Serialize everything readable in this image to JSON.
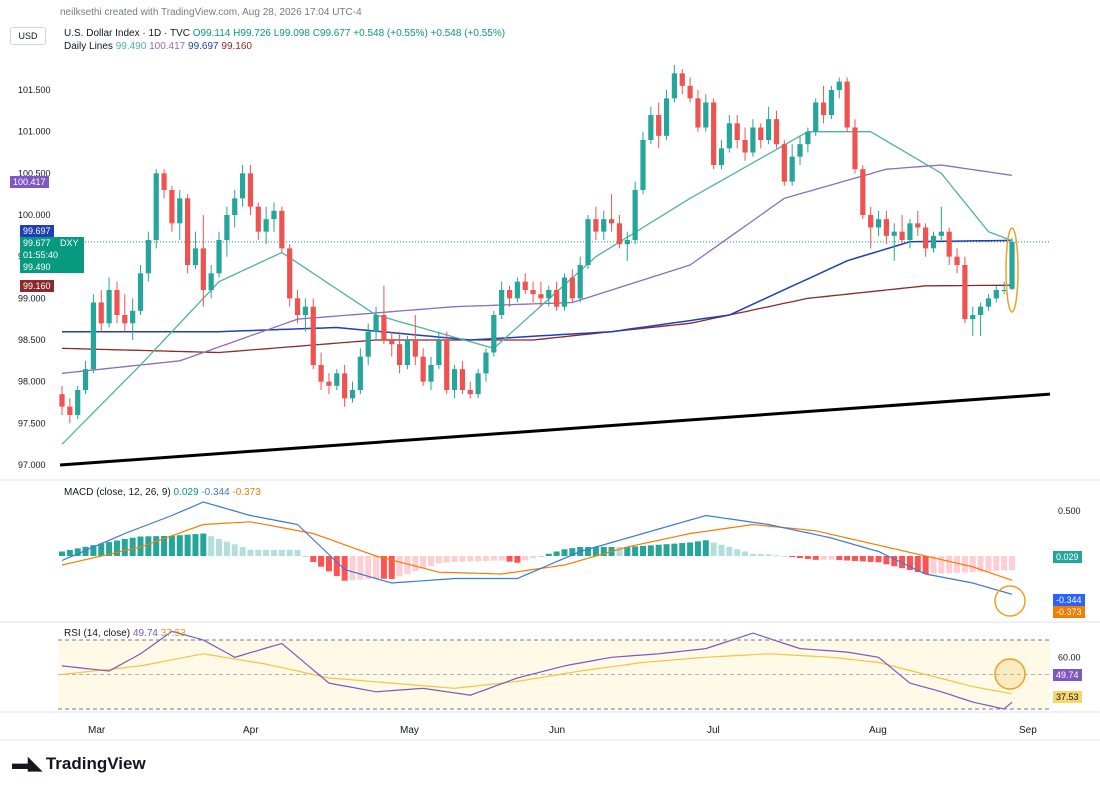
{
  "header": {
    "credit": "neilksethi created with TradingView.com, Aug 28, 2026 17:04 UTC-4",
    "currency": "USD",
    "symbol": "U.S. Dollar Index · 1D · TVC",
    "open": "O99.114",
    "high": "H99.726",
    "low": "L99.098",
    "close": "C99.677",
    "change1": "+0.548 (+0.55%)",
    "change2": "+0.548 (+0.55%)",
    "daily_lines_label": "Daily Lines",
    "daily_lines_values": [
      "99.490",
      "100.417",
      "99.697",
      "99.160"
    ]
  },
  "tags": {
    "price_a": "99.697",
    "price_b": "99.677",
    "price_b_sym": "DXY",
    "countdown": "01:55:40",
    "price_c": "99.490",
    "price_d": "99.160",
    "price_e": "100.417",
    "macd_hist": "0.029",
    "macd_line": "-0.344",
    "macd_signal": "-0.373",
    "rsi_val": "49.74",
    "rsi_ma": "37.53"
  },
  "macd_label": {
    "name": "MACD (close, 12, 26, 9)",
    "v1": "0.029",
    "v2": "-0.344",
    "v3": "-0.373"
  },
  "rsi_label": {
    "name": "RSI (14, close)",
    "v1": "49.74",
    "v2": "37.53"
  },
  "brand": "TradingView",
  "colors": {
    "up": "#26a69a",
    "down": "#ef5350",
    "ma20": "#4fb3a3",
    "ma50": "#8e6bbf",
    "ma100": "#1e3fb8",
    "ma200": "#8b2a2a",
    "macd": "#3c78d8",
    "signal": "#f57c00",
    "rsi": "#7e57c2",
    "rsi_ma": "#f5c542"
  },
  "chart_data": {
    "type": "candlestick",
    "price_axis": {
      "ticks": [
        "101.500",
        "101.000",
        "100.500",
        "100.000",
        "99.500",
        "99.000",
        "98.500",
        "98.000",
        "97.500",
        "97.000"
      ],
      "ylim": [
        97.0,
        101.85
      ]
    },
    "x_ticks": [
      "Mar",
      "Apr",
      "May",
      "Jun",
      "Jul",
      "Aug",
      "Sep"
    ],
    "candles": [
      [
        97.85,
        97.95,
        97.6,
        97.7
      ],
      [
        97.7,
        97.8,
        97.5,
        97.6
      ],
      [
        97.6,
        97.95,
        97.55,
        97.9
      ],
      [
        97.9,
        98.25,
        97.85,
        98.15
      ],
      [
        98.15,
        99.05,
        98.1,
        98.95
      ],
      [
        98.95,
        99.1,
        98.6,
        98.7
      ],
      [
        98.7,
        99.25,
        98.65,
        99.1
      ],
      [
        99.1,
        99.2,
        98.7,
        98.8
      ],
      [
        98.8,
        99.05,
        98.6,
        98.7
      ],
      [
        98.7,
        99.0,
        98.5,
        98.85
      ],
      [
        98.85,
        99.4,
        98.8,
        99.3
      ],
      [
        99.3,
        99.8,
        99.2,
        99.7
      ],
      [
        99.7,
        100.55,
        99.6,
        100.5
      ],
      [
        100.5,
        100.55,
        100.2,
        100.3
      ],
      [
        100.3,
        100.35,
        99.8,
        99.9
      ],
      [
        99.9,
        100.3,
        99.7,
        100.2
      ],
      [
        100.2,
        100.25,
        99.3,
        99.4
      ],
      [
        99.4,
        99.8,
        99.35,
        99.6
      ],
      [
        99.6,
        100.0,
        98.9,
        99.1
      ],
      [
        99.1,
        99.4,
        99.0,
        99.3
      ],
      [
        99.3,
        99.8,
        99.25,
        99.7
      ],
      [
        99.7,
        100.1,
        99.5,
        100.0
      ],
      [
        100.0,
        100.3,
        99.85,
        100.2
      ],
      [
        100.2,
        100.6,
        100.1,
        100.5
      ],
      [
        100.5,
        100.6,
        100.0,
        100.1
      ],
      [
        100.1,
        100.15,
        99.7,
        99.8
      ],
      [
        99.8,
        100.1,
        99.65,
        99.95
      ],
      [
        99.95,
        100.15,
        99.8,
        100.05
      ],
      [
        100.05,
        100.1,
        99.55,
        99.6
      ],
      [
        99.6,
        99.65,
        98.9,
        99.0
      ],
      [
        99.0,
        99.1,
        98.7,
        98.8
      ],
      [
        98.8,
        99.0,
        98.6,
        98.9
      ],
      [
        98.9,
        99.0,
        98.15,
        98.2
      ],
      [
        98.2,
        98.35,
        97.9,
        98.0
      ],
      [
        98.0,
        98.1,
        97.85,
        97.95
      ],
      [
        97.95,
        98.15,
        97.9,
        98.1
      ],
      [
        98.1,
        98.2,
        97.7,
        97.8
      ],
      [
        97.8,
        98.0,
        97.75,
        97.9
      ],
      [
        97.9,
        98.4,
        97.85,
        98.3
      ],
      [
        98.3,
        98.7,
        98.2,
        98.6
      ],
      [
        98.6,
        98.9,
        98.5,
        98.8
      ],
      [
        98.8,
        99.15,
        98.45,
        98.5
      ],
      [
        98.5,
        98.6,
        98.3,
        98.45
      ],
      [
        98.45,
        98.6,
        98.1,
        98.2
      ],
      [
        98.2,
        98.55,
        98.15,
        98.5
      ],
      [
        98.5,
        98.8,
        98.2,
        98.3
      ],
      [
        98.3,
        98.4,
        97.95,
        98.0
      ],
      [
        98.0,
        98.3,
        97.9,
        98.2
      ],
      [
        98.2,
        98.6,
        98.15,
        98.5
      ],
      [
        98.5,
        98.6,
        97.85,
        97.9
      ],
      [
        97.9,
        98.2,
        97.8,
        98.15
      ],
      [
        98.15,
        98.25,
        97.85,
        97.9
      ],
      [
        97.9,
        98.0,
        97.8,
        97.85
      ],
      [
        97.85,
        98.15,
        97.8,
        98.1
      ],
      [
        98.1,
        98.4,
        98.0,
        98.35
      ],
      [
        98.35,
        98.85,
        98.3,
        98.8
      ],
      [
        98.8,
        99.2,
        98.75,
        99.1
      ],
      [
        99.1,
        99.15,
        98.9,
        99.0
      ],
      [
        99.0,
        99.25,
        98.95,
        99.2
      ],
      [
        99.2,
        99.3,
        99.05,
        99.1
      ],
      [
        99.1,
        99.2,
        98.95,
        99.05
      ],
      [
        99.05,
        99.2,
        98.9,
        99.0
      ],
      [
        99.0,
        99.15,
        98.9,
        99.1
      ],
      [
        99.1,
        99.2,
        98.85,
        98.9
      ],
      [
        98.9,
        99.3,
        98.85,
        99.25
      ],
      [
        99.25,
        99.35,
        98.95,
        99.0
      ],
      [
        99.0,
        99.5,
        98.95,
        99.4
      ],
      [
        99.4,
        100.0,
        99.35,
        99.95
      ],
      [
        99.95,
        100.1,
        99.7,
        99.8
      ],
      [
        99.8,
        100.05,
        99.7,
        99.95
      ],
      [
        99.95,
        100.25,
        99.8,
        99.9
      ],
      [
        99.9,
        100.0,
        99.6,
        99.65
      ],
      [
        99.65,
        99.8,
        99.45,
        99.7
      ],
      [
        99.7,
        100.4,
        99.65,
        100.3
      ],
      [
        100.3,
        101.0,
        100.25,
        100.9
      ],
      [
        100.9,
        101.3,
        100.85,
        101.2
      ],
      [
        101.2,
        101.35,
        100.8,
        100.95
      ],
      [
        100.95,
        101.5,
        100.9,
        101.4
      ],
      [
        101.4,
        101.8,
        101.35,
        101.7
      ],
      [
        101.7,
        101.75,
        101.45,
        101.55
      ],
      [
        101.55,
        101.65,
        101.35,
        101.4
      ],
      [
        101.4,
        101.5,
        101.0,
        101.05
      ],
      [
        101.05,
        101.45,
        101.0,
        101.35
      ],
      [
        101.35,
        101.4,
        100.55,
        100.6
      ],
      [
        100.6,
        100.9,
        100.55,
        100.8
      ],
      [
        100.8,
        101.2,
        100.75,
        101.1
      ],
      [
        101.1,
        101.2,
        100.8,
        100.9
      ],
      [
        100.9,
        101.05,
        100.65,
        100.75
      ],
      [
        100.75,
        101.15,
        100.7,
        101.05
      ],
      [
        101.05,
        101.1,
        100.8,
        100.9
      ],
      [
        100.9,
        101.3,
        100.85,
        101.15
      ],
      [
        101.15,
        101.25,
        100.8,
        100.85
      ],
      [
        100.85,
        100.9,
        100.35,
        100.4
      ],
      [
        100.4,
        100.85,
        100.35,
        100.7
      ],
      [
        100.7,
        100.95,
        100.6,
        100.85
      ],
      [
        100.85,
        101.05,
        100.75,
        101.0
      ],
      [
        101.0,
        101.4,
        100.95,
        101.35
      ],
      [
        101.35,
        101.55,
        101.1,
        101.2
      ],
      [
        101.2,
        101.55,
        101.15,
        101.5
      ],
      [
        101.5,
        101.65,
        101.4,
        101.6
      ],
      [
        101.6,
        101.65,
        101.0,
        101.05
      ],
      [
        101.05,
        101.15,
        100.5,
        100.55
      ],
      [
        100.55,
        100.6,
        99.95,
        100.0
      ],
      [
        100.0,
        100.1,
        99.6,
        99.85
      ],
      [
        99.85,
        100.05,
        99.75,
        99.95
      ],
      [
        99.95,
        100.05,
        99.65,
        99.75
      ],
      [
        99.75,
        99.9,
        99.45,
        99.8
      ],
      [
        99.8,
        100.0,
        99.65,
        99.7
      ],
      [
        99.7,
        99.95,
        99.6,
        99.9
      ],
      [
        99.9,
        100.05,
        99.75,
        99.85
      ],
      [
        99.85,
        99.9,
        99.5,
        99.6
      ],
      [
        99.6,
        99.8,
        99.55,
        99.75
      ],
      [
        99.75,
        100.1,
        99.7,
        99.8
      ],
      [
        99.8,
        99.85,
        99.4,
        99.5
      ],
      [
        99.5,
        99.6,
        99.3,
        99.4
      ],
      [
        99.4,
        99.5,
        98.7,
        98.75
      ],
      [
        98.75,
        98.9,
        98.55,
        98.8
      ],
      [
        98.8,
        98.95,
        98.55,
        98.9
      ],
      [
        98.9,
        99.05,
        98.85,
        99.0
      ],
      [
        99.0,
        99.15,
        98.95,
        99.1
      ],
      [
        99.1,
        99.2,
        99.05,
        99.1
      ],
      [
        99.114,
        99.726,
        99.098,
        99.677
      ]
    ],
    "moving_averages": {
      "ma20_anchors": [
        [
          0,
          97.25
        ],
        [
          10,
          98.2
        ],
        [
          20,
          99.2
        ],
        [
          28,
          99.55
        ],
        [
          40,
          98.8
        ],
        [
          55,
          98.4
        ],
        [
          68,
          99.5
        ],
        [
          80,
          100.2
        ],
        [
          95,
          101.0
        ],
        [
          103,
          101.0
        ],
        [
          112,
          100.5
        ],
        [
          118,
          99.8
        ],
        [
          125,
          99.55
        ]
      ],
      "ma50_anchors": [
        [
          0,
          98.1
        ],
        [
          15,
          98.25
        ],
        [
          30,
          98.75
        ],
        [
          50,
          98.9
        ],
        [
          65,
          98.95
        ],
        [
          80,
          99.4
        ],
        [
          92,
          100.2
        ],
        [
          105,
          100.55
        ],
        [
          112,
          100.6
        ],
        [
          125,
          100.42
        ]
      ],
      "ma100_anchors": [
        [
          0,
          98.6
        ],
        [
          20,
          98.6
        ],
        [
          35,
          98.65
        ],
        [
          52,
          98.5
        ],
        [
          70,
          98.6
        ],
        [
          85,
          98.8
        ],
        [
          100,
          99.45
        ],
        [
          108,
          99.68
        ],
        [
          125,
          99.7
        ]
      ],
      "ma200_anchors": [
        [
          0,
          98.4
        ],
        [
          20,
          98.35
        ],
        [
          40,
          98.5
        ],
        [
          60,
          98.5
        ],
        [
          80,
          98.7
        ],
        [
          95,
          99.0
        ],
        [
          110,
          99.15
        ],
        [
          125,
          99.16
        ]
      ]
    },
    "trendline": {
      "from": [
        0,
        97.0
      ],
      "to": [
        126,
        97.85
      ]
    },
    "macd": {
      "ylim": [
        -0.75,
        0.75
      ],
      "ticks": [
        "0.500"
      ],
      "macd_anchors": [
        [
          0,
          -0.05
        ],
        [
          8,
          0.25
        ],
        [
          14,
          0.45
        ],
        [
          18,
          0.6
        ],
        [
          24,
          0.45
        ],
        [
          30,
          0.35
        ],
        [
          36,
          -0.15
        ],
        [
          42,
          -0.3
        ],
        [
          50,
          -0.25
        ],
        [
          58,
          -0.25
        ],
        [
          66,
          0.05
        ],
        [
          74,
          0.25
        ],
        [
          82,
          0.45
        ],
        [
          90,
          0.35
        ],
        [
          98,
          0.2
        ],
        [
          104,
          0.05
        ],
        [
          110,
          -0.2
        ],
        [
          116,
          -0.3
        ],
        [
          122,
          -0.45
        ],
        [
          125,
          -0.344
        ]
      ],
      "signal_anchors": [
        [
          0,
          -0.1
        ],
        [
          10,
          0.1
        ],
        [
          18,
          0.35
        ],
        [
          24,
          0.38
        ],
        [
          32,
          0.25
        ],
        [
          40,
          0.0
        ],
        [
          48,
          -0.18
        ],
        [
          56,
          -0.2
        ],
        [
          64,
          -0.1
        ],
        [
          72,
          0.1
        ],
        [
          80,
          0.25
        ],
        [
          88,
          0.35
        ],
        [
          96,
          0.28
        ],
        [
          104,
          0.12
        ],
        [
          110,
          0.0
        ],
        [
          116,
          -0.12
        ],
        [
          122,
          -0.3
        ],
        [
          125,
          -0.373
        ]
      ]
    },
    "rsi": {
      "ylim": [
        20,
        80
      ],
      "ticks": [
        "60.00"
      ],
      "bands": [
        30,
        70
      ],
      "rsi_anchors": [
        [
          0,
          55
        ],
        [
          6,
          52
        ],
        [
          10,
          62
        ],
        [
          14,
          75
        ],
        [
          18,
          70
        ],
        [
          22,
          60
        ],
        [
          28,
          68
        ],
        [
          34,
          45
        ],
        [
          40,
          40
        ],
        [
          46,
          42
        ],
        [
          52,
          38
        ],
        [
          58,
          48
        ],
        [
          64,
          55
        ],
        [
          70,
          60
        ],
        [
          76,
          62
        ],
        [
          82,
          65
        ],
        [
          88,
          74
        ],
        [
          94,
          65
        ],
        [
          100,
          63
        ],
        [
          104,
          60
        ],
        [
          108,
          45
        ],
        [
          112,
          40
        ],
        [
          116,
          34
        ],
        [
          120,
          30
        ],
        [
          125,
          49.74
        ]
      ],
      "rsi_ma_anchors": [
        [
          0,
          50
        ],
        [
          10,
          55
        ],
        [
          18,
          62
        ],
        [
          26,
          56
        ],
        [
          34,
          48
        ],
        [
          42,
          45
        ],
        [
          50,
          42
        ],
        [
          58,
          46
        ],
        [
          66,
          52
        ],
        [
          74,
          57
        ],
        [
          82,
          60
        ],
        [
          90,
          62
        ],
        [
          98,
          60
        ],
        [
          104,
          57
        ],
        [
          110,
          50
        ],
        [
          116,
          43
        ],
        [
          122,
          38
        ],
        [
          125,
          37.53
        ]
      ]
    }
  }
}
